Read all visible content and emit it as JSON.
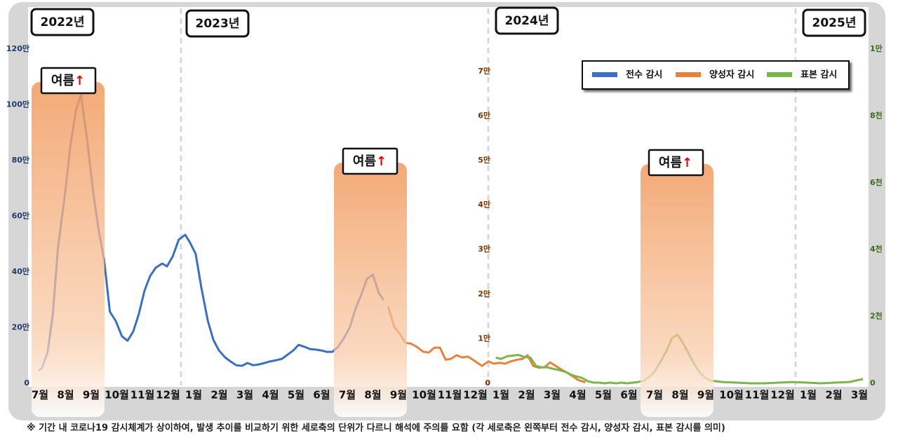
{
  "chart_data": {
    "type": "line",
    "periods": [
      "2022년",
      "2023년",
      "2024년",
      "2025년"
    ],
    "categories": [
      "7월",
      "8월",
      "9월",
      "10월",
      "11월",
      "12월",
      "1월",
      "2월",
      "3월",
      "4월",
      "5월",
      "6월",
      "7월",
      "8월",
      "9월",
      "10월",
      "11월",
      "12월",
      "1월",
      "2월",
      "3월",
      "4월",
      "5월",
      "6월",
      "7월",
      "8월",
      "9월",
      "10월",
      "11월",
      "12월",
      "1월",
      "2월",
      "3월"
    ],
    "annotations": [
      {
        "text": "여름",
        "arrow": "↑"
      },
      {
        "text": "여름",
        "arrow": "↑"
      },
      {
        "text": "여름",
        "arrow": "↑"
      }
    ],
    "ylim": [
      0,
      1200000
    ],
    "yticks": [
      0,
      {
        "value": 200000,
        "label": "20만"
      },
      {
        "value": 400000,
        "label": "40만"
      },
      {
        "value": 600000,
        "label": "60만"
      },
      {
        "value": 800000,
        "label": "80만"
      },
      {
        "value": 1000000,
        "label": "100만"
      },
      {
        "value": 1200000,
        "label": "120만"
      }
    ],
    "y2lim": [
      0,
      75000
    ],
    "y2ticks": [
      0,
      {
        "value": 10000,
        "label": "1만"
      },
      {
        "value": 20000,
        "label": "2만"
      },
      {
        "value": 30000,
        "label": "3만"
      },
      {
        "value": 40000,
        "label": "4만"
      },
      {
        "value": 50000,
        "label": "5만"
      },
      {
        "value": 60000,
        "label": "6만"
      },
      {
        "value": 70000,
        "label": "7만"
      }
    ],
    "y3lim": [
      0,
      10000
    ],
    "y3ticks": [
      0,
      {
        "value": 2000,
        "label": "2천"
      },
      {
        "value": 4000,
        "label": "4천"
      },
      {
        "value": 6000,
        "label": "6천"
      },
      {
        "value": 8000,
        "label": "8천"
      },
      {
        "value": 10000,
        "label": "1만"
      }
    ],
    "series": [
      {
        "name": "전수 감시",
        "color": "#3a6fc4",
        "axis": "y",
        "x": [
          -0.05,
          0.08,
          0.3,
          0.5,
          0.7,
          1.0,
          1.18,
          1.4,
          1.6,
          1.86,
          2.08,
          2.3,
          2.5,
          2.73,
          2.96,
          3.2,
          3.42,
          3.64,
          3.86,
          4.08,
          4.3,
          4.52,
          4.77,
          4.96,
          5.18,
          5.42,
          5.67,
          5.84,
          6.08,
          6.3,
          6.55,
          6.77,
          6.99,
          7.23,
          7.45,
          7.67,
          7.89,
          8.1,
          8.33,
          8.55,
          8.77,
          8.95,
          9.23,
          9.45,
          9.67,
          9.89,
          10.1,
          10.33,
          10.55,
          10.77,
          10.99,
          11.2,
          11.42,
          11.64,
          11.86,
          12.1,
          12.33,
          12.55,
          12.77,
          13.0,
          13.23,
          13.42
        ],
        "values": [
          45000,
          55000,
          113000,
          249000,
          483000,
          697000,
          848000,
          979000,
          1037000,
          860000,
          684000,
          546000,
          445000,
          257000,
          224000,
          169000,
          153000,
          186000,
          249000,
          332000,
          385000,
          415000,
          430000,
          420000,
          455000,
          516000,
          533000,
          508000,
          465000,
          345000,
          226000,
          156000,
          118000,
          93000,
          78000,
          65000,
          63000,
          73000,
          65000,
          68000,
          73000,
          78000,
          83000,
          88000,
          103000,
          118000,
          138000,
          131000,
          123000,
          121000,
          118000,
          113000,
          113000,
          131000,
          161000,
          201000,
          269000,
          319000,
          375000,
          390000,
          325000,
          299000
        ]
      },
      {
        "name": "양성자 감시",
        "color": "#e8823a",
        "axis": "y2",
        "x": [
          13.59,
          13.84,
          14.05,
          14.27,
          14.49,
          14.71,
          14.96,
          15.18,
          15.4,
          15.62,
          15.84,
          16.05,
          16.27,
          16.49,
          16.71,
          16.93,
          17.26,
          17.51,
          17.73,
          17.95,
          18.16,
          18.38,
          18.63,
          18.85,
          19.04,
          19.26,
          19.48,
          19.7,
          19.92,
          20.14,
          20.36,
          20.58,
          20.8,
          21.0,
          21.3
        ],
        "values": [
          17300,
          12600,
          11100,
          9100,
          8900,
          8200,
          7100,
          6900,
          8000,
          8000,
          5300,
          5500,
          6300,
          5800,
          6000,
          5200,
          3900,
          4900,
          4400,
          4600,
          4400,
          4900,
          5300,
          5500,
          6300,
          3900,
          3500,
          3600,
          4700,
          3900,
          3100,
          2400,
          1600,
          800,
          200
        ]
      },
      {
        "name": "표본 감시",
        "color": "#7ab648",
        "axis": "y3",
        "x": [
          17.8,
          18.0,
          18.25,
          18.47,
          18.68,
          18.9,
          19.15,
          19.37,
          19.59,
          19.81,
          20.0,
          20.25,
          20.49,
          20.71,
          20.93,
          21.15,
          21.4,
          21.62,
          21.84,
          22.05,
          22.27,
          22.5,
          22.71,
          22.93,
          23.15,
          23.37,
          23.59,
          23.8,
          24.0,
          24.25,
          24.47,
          24.68,
          24.9,
          25.12,
          25.34,
          25.56,
          25.78,
          26.0,
          26.2,
          26.66,
          27.2,
          27.75,
          28.3,
          28.85,
          29.4,
          29.95,
          30.5,
          31.04,
          31.6,
          32.14
        ],
        "values": [
          770,
          730,
          810,
          830,
          850,
          790,
          770,
          520,
          480,
          480,
          440,
          400,
          350,
          270,
          210,
          170,
          60,
          20,
          20,
          0,
          20,
          0,
          20,
          0,
          20,
          40,
          80,
          190,
          350,
          670,
          980,
          1350,
          1460,
          1190,
          880,
          560,
          310,
          150,
          80,
          40,
          20,
          0,
          0,
          20,
          40,
          20,
          0,
          20,
          40,
          130
        ]
      }
    ],
    "note": "※ 기간 내 코로나19 감시체계가 상이하여, 발생 추이를 비교하기 위한 세로축의 단위가 다르니 해석에 주의를 요함 (각 세로축은 왼쪽부터 전수 감시, 양성자 감시, 표본 감시를 의미)"
  }
}
